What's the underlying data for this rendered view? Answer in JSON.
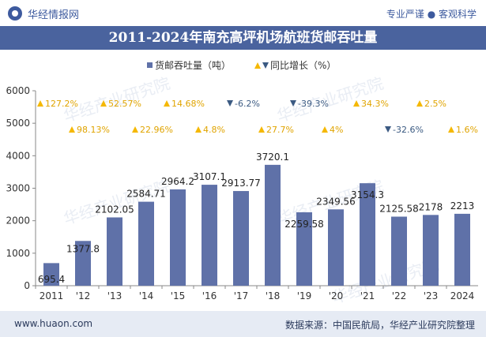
{
  "header": {
    "brand": "华经情报网",
    "tagline": "专业严谨 ● 客观科学"
  },
  "title": "2011-2024年南充高坪机场航班货邮吞吐量",
  "footer": {
    "website": "www.huaon.com",
    "source": "数据来源：中国民航局，华经产业研究院整理"
  },
  "watermark": "华经产业研究院",
  "colors": {
    "bar": "#5f71a8",
    "up_marker": "#f5b800",
    "down_marker": "#3b5a82",
    "label_up": "#e0a400",
    "label_down": "#3b5a82",
    "title_bg": "#4a639e"
  },
  "chart_data": {
    "type": "bar",
    "categories": [
      "2011",
      "'12",
      "'13",
      "'14",
      "'15",
      "'16",
      "'17",
      "'18",
      "'19",
      "'20",
      "'21",
      "'22",
      "'23",
      "2024"
    ],
    "series": [
      {
        "name": "货邮吞吐量（吨）",
        "values": [
          695.4,
          1377.8,
          2102.05,
          2584.71,
          2964.2,
          3107.1,
          2913.77,
          3720.1,
          2259.58,
          2349.56,
          3154.3,
          2125.58,
          2178,
          2213
        ],
        "labels": [
          "695.4",
          "1377.8",
          "2102.05",
          "2584.71",
          "2964.2",
          "3107.1",
          "2913.77",
          "3720.1",
          "2259.58",
          "2349.56",
          "3154.3",
          "2125.58",
          "2178",
          "2213"
        ]
      },
      {
        "name": "同比增长（%）",
        "values": [
          127.2,
          98.13,
          52.57,
          22.96,
          14.68,
          4.8,
          -6.2,
          27.7,
          -39.3,
          4,
          34.3,
          -32.6,
          2.5,
          1.6
        ],
        "labels": [
          "127.2%",
          "98.13%",
          "52.57%",
          "22.96%",
          "14.68%",
          "4.8%",
          "-6.2%",
          "27.7%",
          "-39.3%",
          "4%",
          "34.3%",
          "-32.6%",
          "2.5%",
          "1.6%"
        ]
      }
    ],
    "ylim": [
      0,
      6000
    ],
    "yticks": [
      "0",
      "1000",
      "2000",
      "3000",
      "4000",
      "5000",
      "6000"
    ],
    "legend_position": "top-center",
    "grid": false
  }
}
